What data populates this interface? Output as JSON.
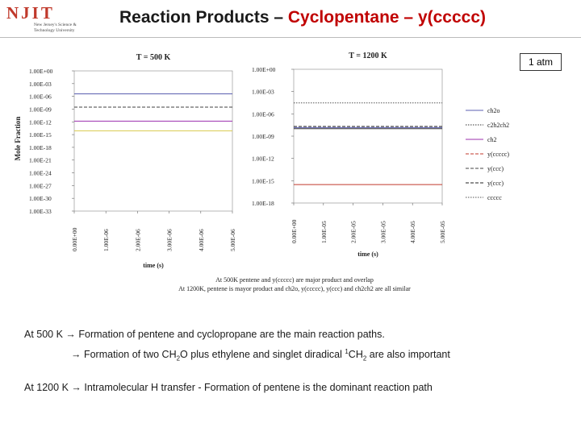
{
  "header": {
    "logo_text": "NJIT",
    "logo_subtext": "New Jersey's Science & Technology University",
    "title_prefix": "Reaction Products – ",
    "title_highlight": "Cyclopentane – y(ccccc)",
    "pressure_label": "1 atm"
  },
  "figure": {
    "ylabel": "Mole Fraction",
    "legend": [
      "ch2o",
      "c2h2ch2",
      "ch2",
      "y(ccccc)",
      "y(ccc)",
      "y(ccc)",
      "ccccc"
    ],
    "caption_line1": "At 500K pentene and y(ccccc) are major product and overlap",
    "caption_line2": "At 1200K, pentene is mayor product and ch2o, y(ccccc), y(ccc) and ch2ch2 are all similar"
  },
  "chart_data": [
    {
      "type": "line",
      "title": "T = 500 K",
      "xlabel": "time (s)",
      "ylabel": "Mole Fraction",
      "y_scale": "log",
      "xlim": [
        0,
        5e-06
      ],
      "x_ticks": [
        "0.00E+00",
        "1.00E-06",
        "2.00E-06",
        "3.00E-06",
        "4.00E-06",
        "5.00E-06"
      ],
      "y_ticks": [
        "1.00E+00",
        "1.00E-03",
        "1.00E-06",
        "1.00E-09",
        "1.00E-12",
        "1.00E-15",
        "1.00E-18",
        "1.00E-21",
        "1.00E-24",
        "1.00E-27",
        "1.00E-30",
        "1.00E-33"
      ],
      "ylim_exp": [
        -33,
        0
      ],
      "series": [
        {
          "name": "ch2o",
          "color": "#5b5fb0",
          "dash": "solid",
          "x": [
            0,
            5e-06
          ],
          "y": [
            4e-06,
            4e-06
          ]
        },
        {
          "name": "y(ccccc)",
          "color": "#404040",
          "dash": "dashed",
          "x": [
            0,
            5e-06
          ],
          "y": [
            3e-09,
            3e-09
          ]
        },
        {
          "name": "ch2",
          "color": "#9b2fae",
          "dash": "solid",
          "x": [
            0,
            5e-06
          ],
          "y": [
            1.5e-12,
            1.5e-12
          ]
        },
        {
          "name": "c2h2ch2",
          "color": "#d8c84a",
          "dash": "solid",
          "x": [
            0,
            5e-06
          ],
          "y": [
            8e-15,
            8e-15
          ]
        }
      ]
    },
    {
      "type": "line",
      "title": "T = 1200 K",
      "xlabel": "time (s)",
      "ylabel": "Mole Fraction",
      "y_scale": "log",
      "xlim": [
        0,
        5e-05
      ],
      "x_ticks": [
        "0.00E+00",
        "1.00E-05",
        "2.00E-05",
        "3.00E-05",
        "4.00E-05",
        "5.00E-05"
      ],
      "y_ticks": [
        "1.00E+00",
        "1.00E-03",
        "1.00E-06",
        "1.00E-09",
        "1.00E-12",
        "1.00E-15",
        "1.00E-18"
      ],
      "ylim_exp": [
        -18,
        0
      ],
      "series": [
        {
          "name": "ccccc",
          "color": "#555555",
          "dash": "dotted",
          "x": [
            0,
            5e-05
          ],
          "y": [
            3e-05,
            3e-05
          ]
        },
        {
          "name": "y(ccc)",
          "color": "#222222",
          "dash": "dashed",
          "x": [
            0,
            5e-05
          ],
          "y": [
            2e-08,
            2e-08
          ]
        },
        {
          "name": "ch2o",
          "color": "#5b5fb0",
          "dash": "solid",
          "x": [
            0,
            5e-05
          ],
          "y": [
            1.4e-08,
            1.4e-08
          ]
        },
        {
          "name": "c2h2ch2",
          "color": "#333333",
          "dash": "solid",
          "x": [
            0,
            5e-05
          ],
          "y": [
            1e-08,
            1e-08
          ]
        },
        {
          "name": "ch2",
          "color": "#c0392b",
          "dash": "solid",
          "x": [
            0,
            5e-05
          ],
          "y": [
            3e-16,
            3e-16
          ]
        }
      ]
    }
  ],
  "observations": {
    "a_prefix": "At 500 K → Formation of pentene and cyclopropane are the main reaction paths.",
    "b_prefix": "→ Formation of two CH",
    "b_sub1": "2",
    "b_mid": "O plus ethylene and singlet diradical ",
    "b_sup": "1",
    "b_ch": "CH",
    "b_sub2": "2",
    "b_suffix": " are also important",
    "c_text": "At 1200 K → Intramolecular H transfer - Formation of pentene is the dominant reaction path"
  }
}
